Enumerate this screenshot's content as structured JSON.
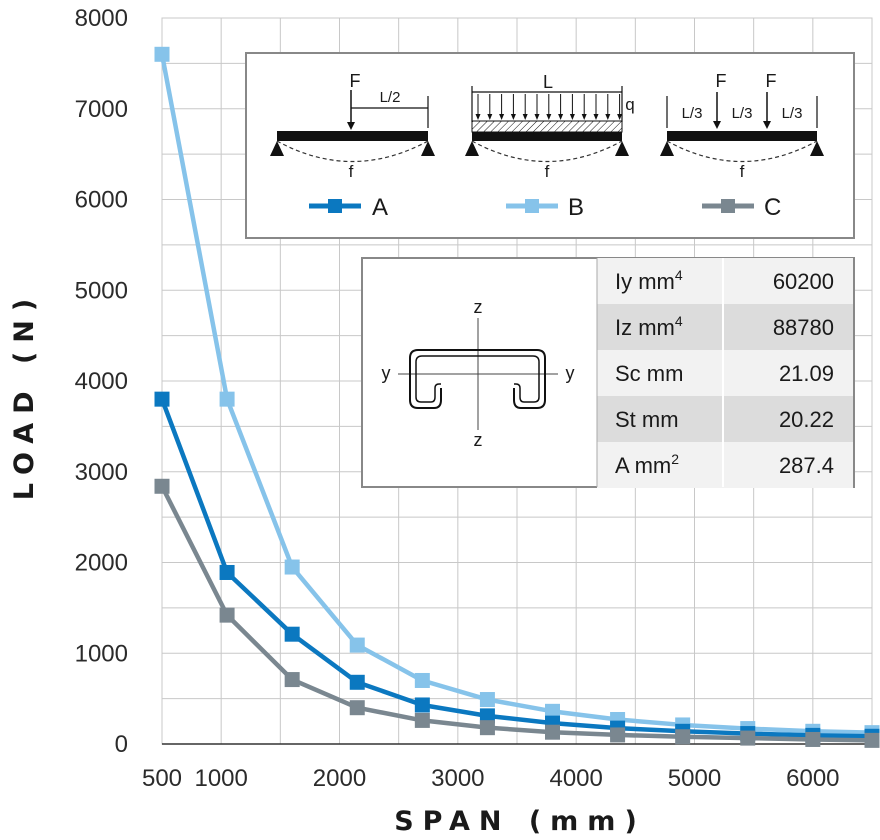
{
  "chart_data": {
    "type": "line",
    "xlabel": "SPAN (mm)",
    "ylabel": "LOAD (N)",
    "xlim": [
      500,
      6500
    ],
    "ylim": [
      0,
      8000
    ],
    "x_ticks": [
      "500",
      "1000",
      "2000",
      "3000",
      "4000",
      "5000",
      "6000"
    ],
    "x_tick_values": [
      500,
      1000,
      2000,
      3000,
      4000,
      5000,
      6000
    ],
    "y_ticks": [
      "0",
      "1000",
      "2000",
      "3000",
      "4000",
      "5000",
      "6000",
      "7000",
      "8000"
    ],
    "y_tick_values": [
      0,
      1000,
      2000,
      3000,
      4000,
      5000,
      6000,
      7000,
      8000
    ],
    "grid": true,
    "legend_position": "top-right",
    "x": [
      500,
      1050,
      1600,
      2150,
      2700,
      3250,
      3800,
      4350,
      4900,
      5450,
      6000,
      6500
    ],
    "series": [
      {
        "name": "A",
        "color": "#0b78c0",
        "values": [
          3800,
          1890,
          1210,
          680,
          430,
          310,
          230,
          175,
          140,
          115,
          95,
          85
        ]
      },
      {
        "name": "B",
        "color": "#86c3ea",
        "values": [
          7600,
          3800,
          1950,
          1090,
          700,
          490,
          360,
          270,
          210,
          170,
          140,
          125
        ]
      },
      {
        "name": "C",
        "color": "#7a8790",
        "values": [
          2840,
          1420,
          710,
          400,
          260,
          180,
          130,
          100,
          80,
          65,
          50,
          40
        ]
      }
    ]
  },
  "diagrams": {
    "a": {
      "force": "F",
      "half_span": "L/2",
      "deflection": "f"
    },
    "b": {
      "span": "L",
      "load": "q",
      "deflection": "f"
    },
    "c": {
      "force_left": "F",
      "force_right": "F",
      "third_1": "L/3",
      "third_2": "L/3",
      "third_3": "L/3",
      "deflection": "f"
    }
  },
  "legend": {
    "a": "A",
    "b": "B",
    "c": "C"
  },
  "section": {
    "z_top": "z",
    "z_bottom": "z",
    "y_left": "y",
    "y_right": "y"
  },
  "properties": [
    {
      "label": "Iy  mm",
      "sup": "4",
      "value": "60200"
    },
    {
      "label": "Iz  mm",
      "sup": "4",
      "value": "88780"
    },
    {
      "label": "Sc mm",
      "sup": "",
      "value": "21.09"
    },
    {
      "label": "St  mm",
      "sup": "",
      "value": "20.22"
    },
    {
      "label": "A   mm",
      "sup": "2",
      "value": "287.4"
    }
  ]
}
